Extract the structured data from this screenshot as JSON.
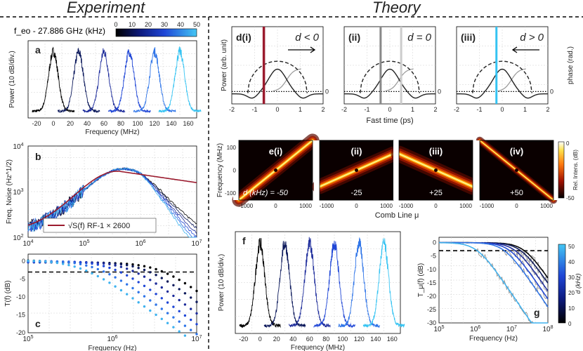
{
  "headers": {
    "experiment": "Experiment",
    "theory": "Theory"
  },
  "colors": {
    "black": "#000000",
    "dark_navy": "#0d1a5c",
    "navy": "#1b2a9a",
    "blue": "#1f46d6",
    "mid_blue": "#2e74e8",
    "light_blue": "#3fb2ef",
    "cyan": "#35c3f2",
    "dark_red": "#9b1b2e",
    "gray": "#8c8c8c"
  },
  "colorbar_a": {
    "label": "f_eo - 27.886 GHz (kHz)",
    "ticks": [
      "0",
      "10",
      "20",
      "30",
      "40",
      "50"
    ]
  },
  "panel_a": {
    "letter": "a",
    "ylabel": "Power (10 dB/div.)",
    "xlabel": "Frequency (MHz)",
    "xticks": [
      "-20",
      "0",
      "20",
      "40",
      "60",
      "80",
      "100",
      "120",
      "140",
      "160"
    ],
    "chart_data": {
      "type": "line",
      "x_range": [
        -30,
        170
      ],
      "peak_centers_MHz": [
        0,
        30,
        60,
        90,
        120,
        150
      ],
      "series_colors": [
        "#000000",
        "#0d1a5c",
        "#1b2a9a",
        "#1f46d6",
        "#2e74e8",
        "#35c3f2"
      ]
    }
  },
  "panel_b": {
    "letter": "b",
    "ylabel": "Freq. Noise (Hz^1/2)",
    "xlabel": "",
    "xticks": [
      "10^4",
      "10^5",
      "10^6",
      "10^7"
    ],
    "yticks": [
      "10^2",
      "10^3",
      "10^4"
    ],
    "legend": "√S(f) RF-1 × 2600",
    "chart_data": {
      "type": "line",
      "xscale": "log",
      "yscale": "log",
      "xlim": [
        10000,
        10000000
      ],
      "ylim": [
        100,
        10000
      ]
    }
  },
  "panel_c": {
    "letter": "c",
    "ylabel": "T(f) (dB)",
    "xlabel": "Frequency (Hz)",
    "xticks": [
      "10^5",
      "10^6",
      "10^7"
    ],
    "yticks": [
      "0",
      "-5",
      "-10",
      "-15",
      "-20"
    ],
    "chart_data": {
      "type": "scatter",
      "xscale": "log",
      "xlim": [
        100000,
        10000000
      ],
      "ylim": [
        -20,
        2
      ],
      "threshold_dB": -3
    }
  },
  "panel_d": {
    "titles": [
      "d(i)",
      "(ii)",
      "(iii)"
    ],
    "conditions": [
      "d < 0",
      "d = 0",
      "d > 0"
    ],
    "ylabel_left": "Power (arb. unit)",
    "ylabel_right": "phase (rad.)",
    "xlabel": "Fast time (ps)",
    "xticks": [
      "-2",
      "-1",
      "0",
      "1",
      "2"
    ],
    "zero_label": "0",
    "marker_colors": [
      "#9b1b2e",
      "#888888",
      "#35c3f2"
    ]
  },
  "panel_e": {
    "titles": [
      "e(i)",
      "(ii)",
      "(iii)",
      "(iv)"
    ],
    "d_values": [
      "d (kHz) = -50",
      "-25",
      "+25",
      "+50"
    ],
    "ylabel": "Frequency (MHz)",
    "xlabel": "Comb Line μ",
    "yticks": [
      "100",
      "0",
      "-100"
    ],
    "xticks": [
      "-1000",
      "0",
      "1000"
    ],
    "colorbar_label": "Rel. Intens. (dB)",
    "colorbar_ticks": [
      "0",
      "-50"
    ]
  },
  "panel_f": {
    "letter": "f",
    "ylabel": "Power (10 dB/div.)",
    "xlabel": "Frequency (MHz)",
    "xticks": [
      "-20",
      "0",
      "20",
      "40",
      "60",
      "80",
      "100",
      "120",
      "140",
      "160"
    ],
    "chart_data": {
      "type": "line",
      "x_range": [
        -30,
        170
      ],
      "peak_centers_MHz": [
        0,
        30,
        60,
        90,
        120,
        150
      ]
    }
  },
  "panel_g": {
    "letter": "g",
    "ylabel": "T_μ(f) (dB)",
    "xlabel": "Frequency (Hz)",
    "xticks": [
      "10^5",
      "10^6",
      "10^7",
      "10^8"
    ],
    "yticks": [
      "0",
      "-5",
      "-10",
      "-15",
      "-20",
      "-25",
      "-30"
    ],
    "colorbar_label": "d (kHz)",
    "colorbar_ticks": [
      "50",
      "40",
      "30",
      "20",
      "10",
      "0"
    ],
    "chart_data": {
      "type": "line",
      "xscale": "log",
      "xlim": [
        100000,
        100000000
      ],
      "ylim": [
        -30,
        2
      ],
      "threshold_dB": -3
    }
  }
}
